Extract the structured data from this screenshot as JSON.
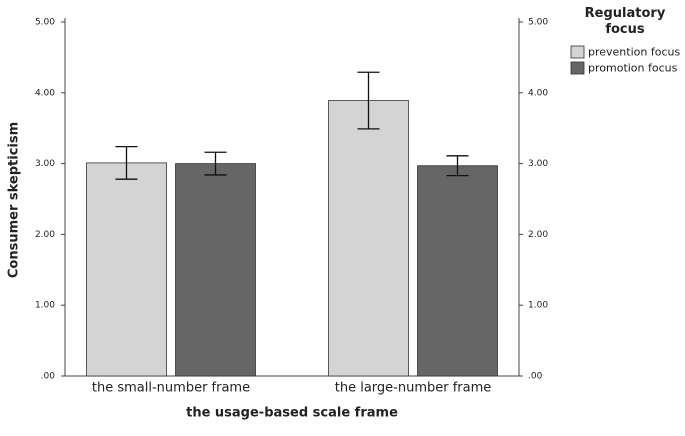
{
  "chart_data": {
    "type": "bar",
    "x_label": "the usage-based scale frame",
    "y_label": "Consumer skepticism",
    "legend_title": "Regulatory focus",
    "legend_position": "top-right",
    "categories": [
      "the small-number frame",
      "the large-number frame"
    ],
    "series": [
      {
        "name": "prevention focus",
        "color": "#d4d4d4",
        "values": [
          3.01,
          3.89
        ],
        "errors": [
          0.23,
          0.4
        ]
      },
      {
        "name": "promotion focus",
        "color": "#666666",
        "values": [
          3.0,
          2.97
        ],
        "errors": [
          0.16,
          0.14
        ]
      }
    ],
    "ylim": [
      0,
      5
    ],
    "yticks": [
      {
        "value": 0,
        "label": ".00"
      },
      {
        "value": 1,
        "label": "1.00"
      },
      {
        "value": 2,
        "label": "2.00"
      },
      {
        "value": 3,
        "label": "3.00"
      },
      {
        "value": 4,
        "label": "4.00"
      },
      {
        "value": 5,
        "label": "5.00"
      }
    ],
    "grid": false
  }
}
